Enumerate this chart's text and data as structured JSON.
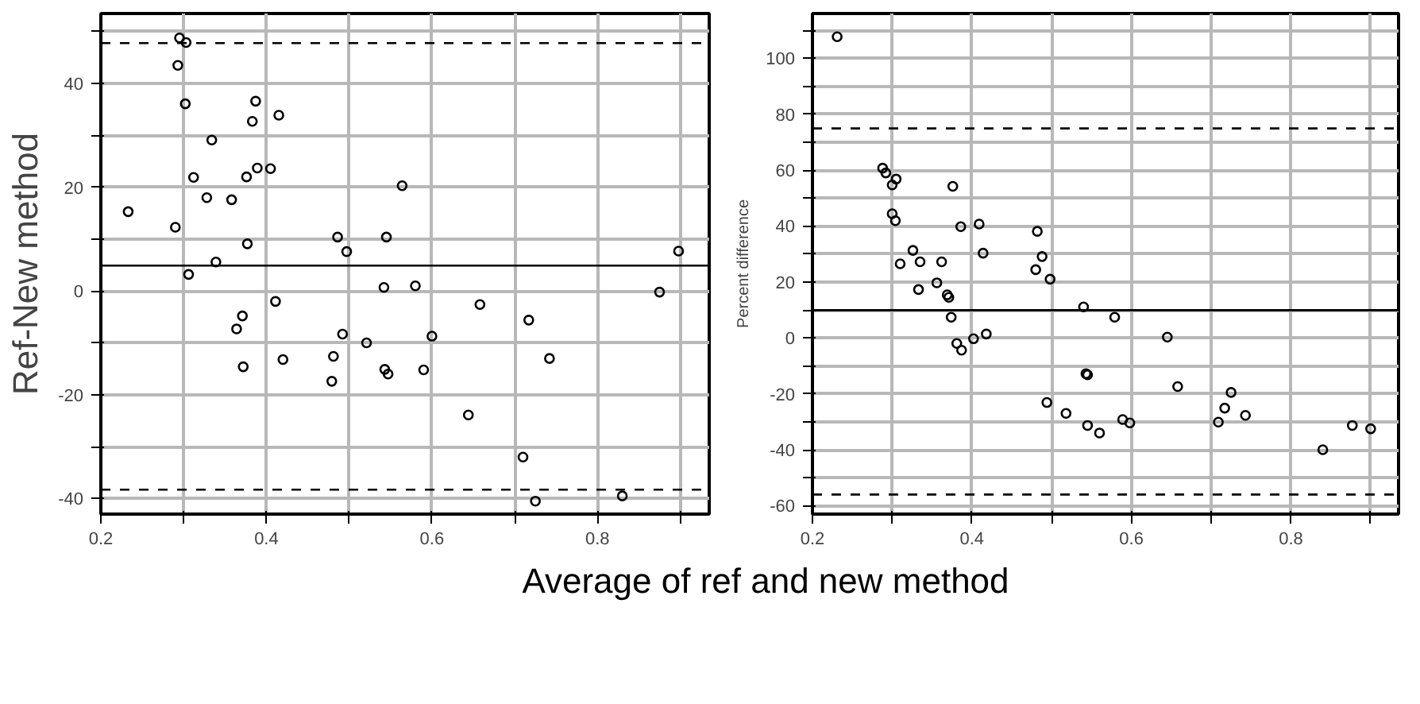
{
  "chart_data": [
    {
      "type": "scatter",
      "ylabel": "Ref-New method",
      "xlabel": "Average of ref and new method",
      "marker": "circle",
      "grid": true,
      "xlim": [
        0.2,
        0.935
      ],
      "ylim": [
        -43,
        53.5
      ],
      "xticks": [
        0.2,
        {
          "value": 0.3,
          "label": null
        },
        0.4,
        {
          "value": 0.5,
          "label": null
        },
        0.6,
        {
          "value": 0.7,
          "label": null
        },
        0.8,
        {
          "value": 0.9,
          "label": null
        }
      ],
      "yticks": [
        -40,
        {
          "value": -30,
          "label": null
        },
        -20,
        {
          "value": -10,
          "label": null
        },
        0,
        {
          "value": 10,
          "label": null
        },
        20,
        {
          "value": 30,
          "label": null
        },
        40,
        {
          "value": 50,
          "label": null
        }
      ],
      "series": [
        {
          "color": "#000000",
          "x": [
            0.233,
            0.295,
            0.303,
            0.293,
            0.302,
            0.29,
            0.312,
            0.306,
            0.334,
            0.328,
            0.339,
            0.358,
            0.376,
            0.377,
            0.383,
            0.387,
            0.389,
            0.405,
            0.415,
            0.411,
            0.371,
            0.364,
            0.372,
            0.42,
            0.486,
            0.497,
            0.492,
            0.481,
            0.479,
            0.564,
            0.545,
            0.898,
            0.542,
            0.58,
            0.875,
            0.658,
            0.717,
            0.521,
            0.6,
            0.742,
            0.543,
            0.547,
            0.59,
            0.644,
            0.71,
            0.725,
            0.83
          ],
          "values": [
            15.3,
            48.8,
            47.9,
            43.5,
            36.1,
            12.3,
            21.9,
            3.2,
            29.1,
            18,
            5.6,
            17.6,
            22,
            9.1,
            32.7,
            36.6,
            23.7,
            23.6,
            33.9,
            -2,
            -4.8,
            -7.3,
            -14.6,
            -13.2,
            10.4,
            7.6,
            -8.3,
            -12.6,
            -17.4,
            20.3,
            10.4,
            7.7,
            0.7,
            1,
            -0.2,
            -2.6,
            -5.6,
            -10,
            -8.7,
            -13,
            -15.1,
            -16,
            -15.2,
            -23.9,
            -32,
            -40.5,
            -39.5
          ]
        }
      ],
      "ref_lines": [
        {
          "axis": "y",
          "value": 4.9,
          "line_style": "solid",
          "color": "#000000"
        },
        {
          "axis": "y",
          "value": 47.8,
          "line_style": "dashed",
          "color": "#000000"
        },
        {
          "axis": "y",
          "value": -38.3,
          "line_style": "dashed",
          "color": "#000000"
        }
      ]
    },
    {
      "type": "scatter",
      "ylabel": "Percent difference",
      "marker": "circle",
      "grid": true,
      "xlim": [
        0.2,
        0.935
      ],
      "ylim": [
        -63,
        116
      ],
      "xticks": [
        0.2,
        {
          "value": 0.3,
          "label": null
        },
        0.4,
        {
          "value": 0.5,
          "label": null
        },
        0.6,
        {
          "value": 0.7,
          "label": null
        },
        0.8,
        {
          "value": 0.9,
          "label": null
        }
      ],
      "yticks": [
        -60,
        {
          "value": -50,
          "label": null
        },
        -40,
        {
          "value": -30,
          "label": null
        },
        -20,
        {
          "value": -10,
          "label": null
        },
        0,
        {
          "value": 10,
          "label": null
        },
        20,
        {
          "value": 30,
          "label": null
        },
        40,
        {
          "value": 50,
          "label": null
        },
        60,
        {
          "value": 70,
          "label": null
        },
        80,
        {
          "value": 90,
          "label": null
        },
        100,
        {
          "value": 110,
          "label": null
        }
      ],
      "series": [
        {
          "color": "#000000",
          "x": [
            0.231,
            0.288,
            0.292,
            0.305,
            0.3,
            0.3,
            0.304,
            0.31,
            0.326,
            0.335,
            0.333,
            0.362,
            0.356,
            0.369,
            0.371,
            0.376,
            0.374,
            0.381,
            0.387,
            0.386,
            0.402,
            0.409,
            0.414,
            0.418,
            0.482,
            0.488,
            0.48,
            0.498,
            0.54,
            0.579,
            0.645,
            0.543,
            0.545,
            0.658,
            0.494,
            0.518,
            0.725,
            0.717,
            0.743,
            0.709,
            0.545,
            0.56,
            0.589,
            0.598,
            0.84,
            0.877,
            0.9
          ],
          "values": [
            107.7,
            60.7,
            59,
            56.8,
            54.7,
            44.4,
            41.9,
            26.5,
            31.3,
            27.2,
            17.3,
            27.2,
            19.7,
            15.4,
            14.5,
            54.2,
            7.4,
            -2,
            -4.4,
            39.8,
            -0.3,
            40.7,
            30.3,
            1.4,
            38.1,
            29.1,
            24.4,
            21,
            11.1,
            7.4,
            0.3,
            -12.8,
            -13.2,
            -17.4,
            -23.1,
            -27,
            -19.5,
            -25.1,
            -27.7,
            -30.1,
            -31.3,
            -34,
            -29.2,
            -30.4,
            -40,
            -31.3,
            -32.5
          ]
        }
      ],
      "ref_lines": [
        {
          "axis": "y",
          "value": 9.9,
          "line_style": "solid",
          "color": "#000000"
        },
        {
          "axis": "y",
          "value": 74.9,
          "line_style": "dashed",
          "color": "#000000"
        },
        {
          "axis": "y",
          "value": -56,
          "line_style": "dashed",
          "color": "#000000"
        }
      ]
    }
  ]
}
